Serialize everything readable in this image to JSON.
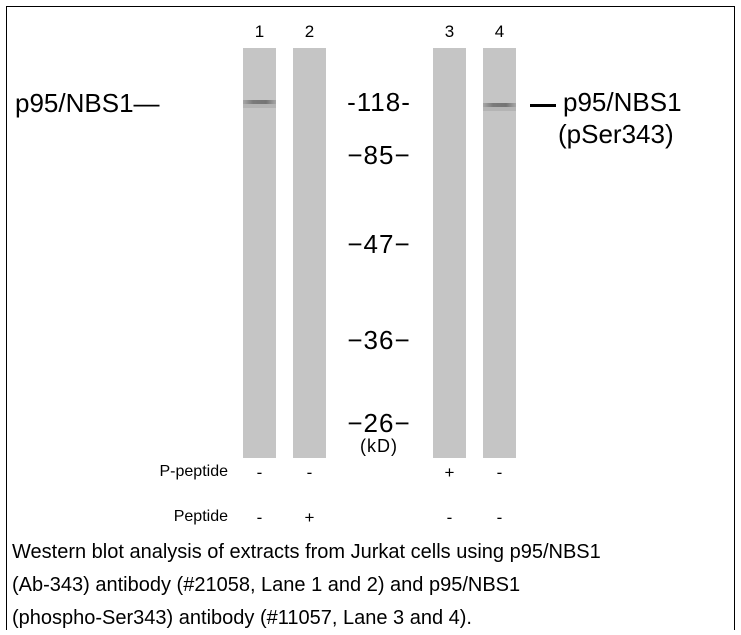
{
  "lanes": [
    {
      "number": "1",
      "p_peptide": "-",
      "peptide": "-",
      "band": true
    },
    {
      "number": "2",
      "p_peptide": "-",
      "peptide": "+",
      "band": false
    },
    {
      "number": "3",
      "p_peptide": "+",
      "peptide": "-",
      "band": false
    },
    {
      "number": "4",
      "p_peptide": "-",
      "peptide": "-",
      "band": true
    }
  ],
  "left_label": "p95/NBS1—",
  "right_label": {
    "line1": "p95/NBS1",
    "line2": "(pSer343)"
  },
  "markers": [
    "-118-",
    "−85−",
    "−47−",
    "−36−",
    "−26−"
  ],
  "unit": "(kD)",
  "row_labels": {
    "p_peptide": "P-peptide",
    "peptide": "Peptide"
  },
  "caption": [
    "Western blot analysis of extracts from Jurkat cells using p95/NBS1",
    "(Ab-343) antibody (#21058, Lane 1 and 2) and p95/NBS1",
    "(phospho-Ser343) antibody (#11057, Lane 3 and 4)."
  ]
}
